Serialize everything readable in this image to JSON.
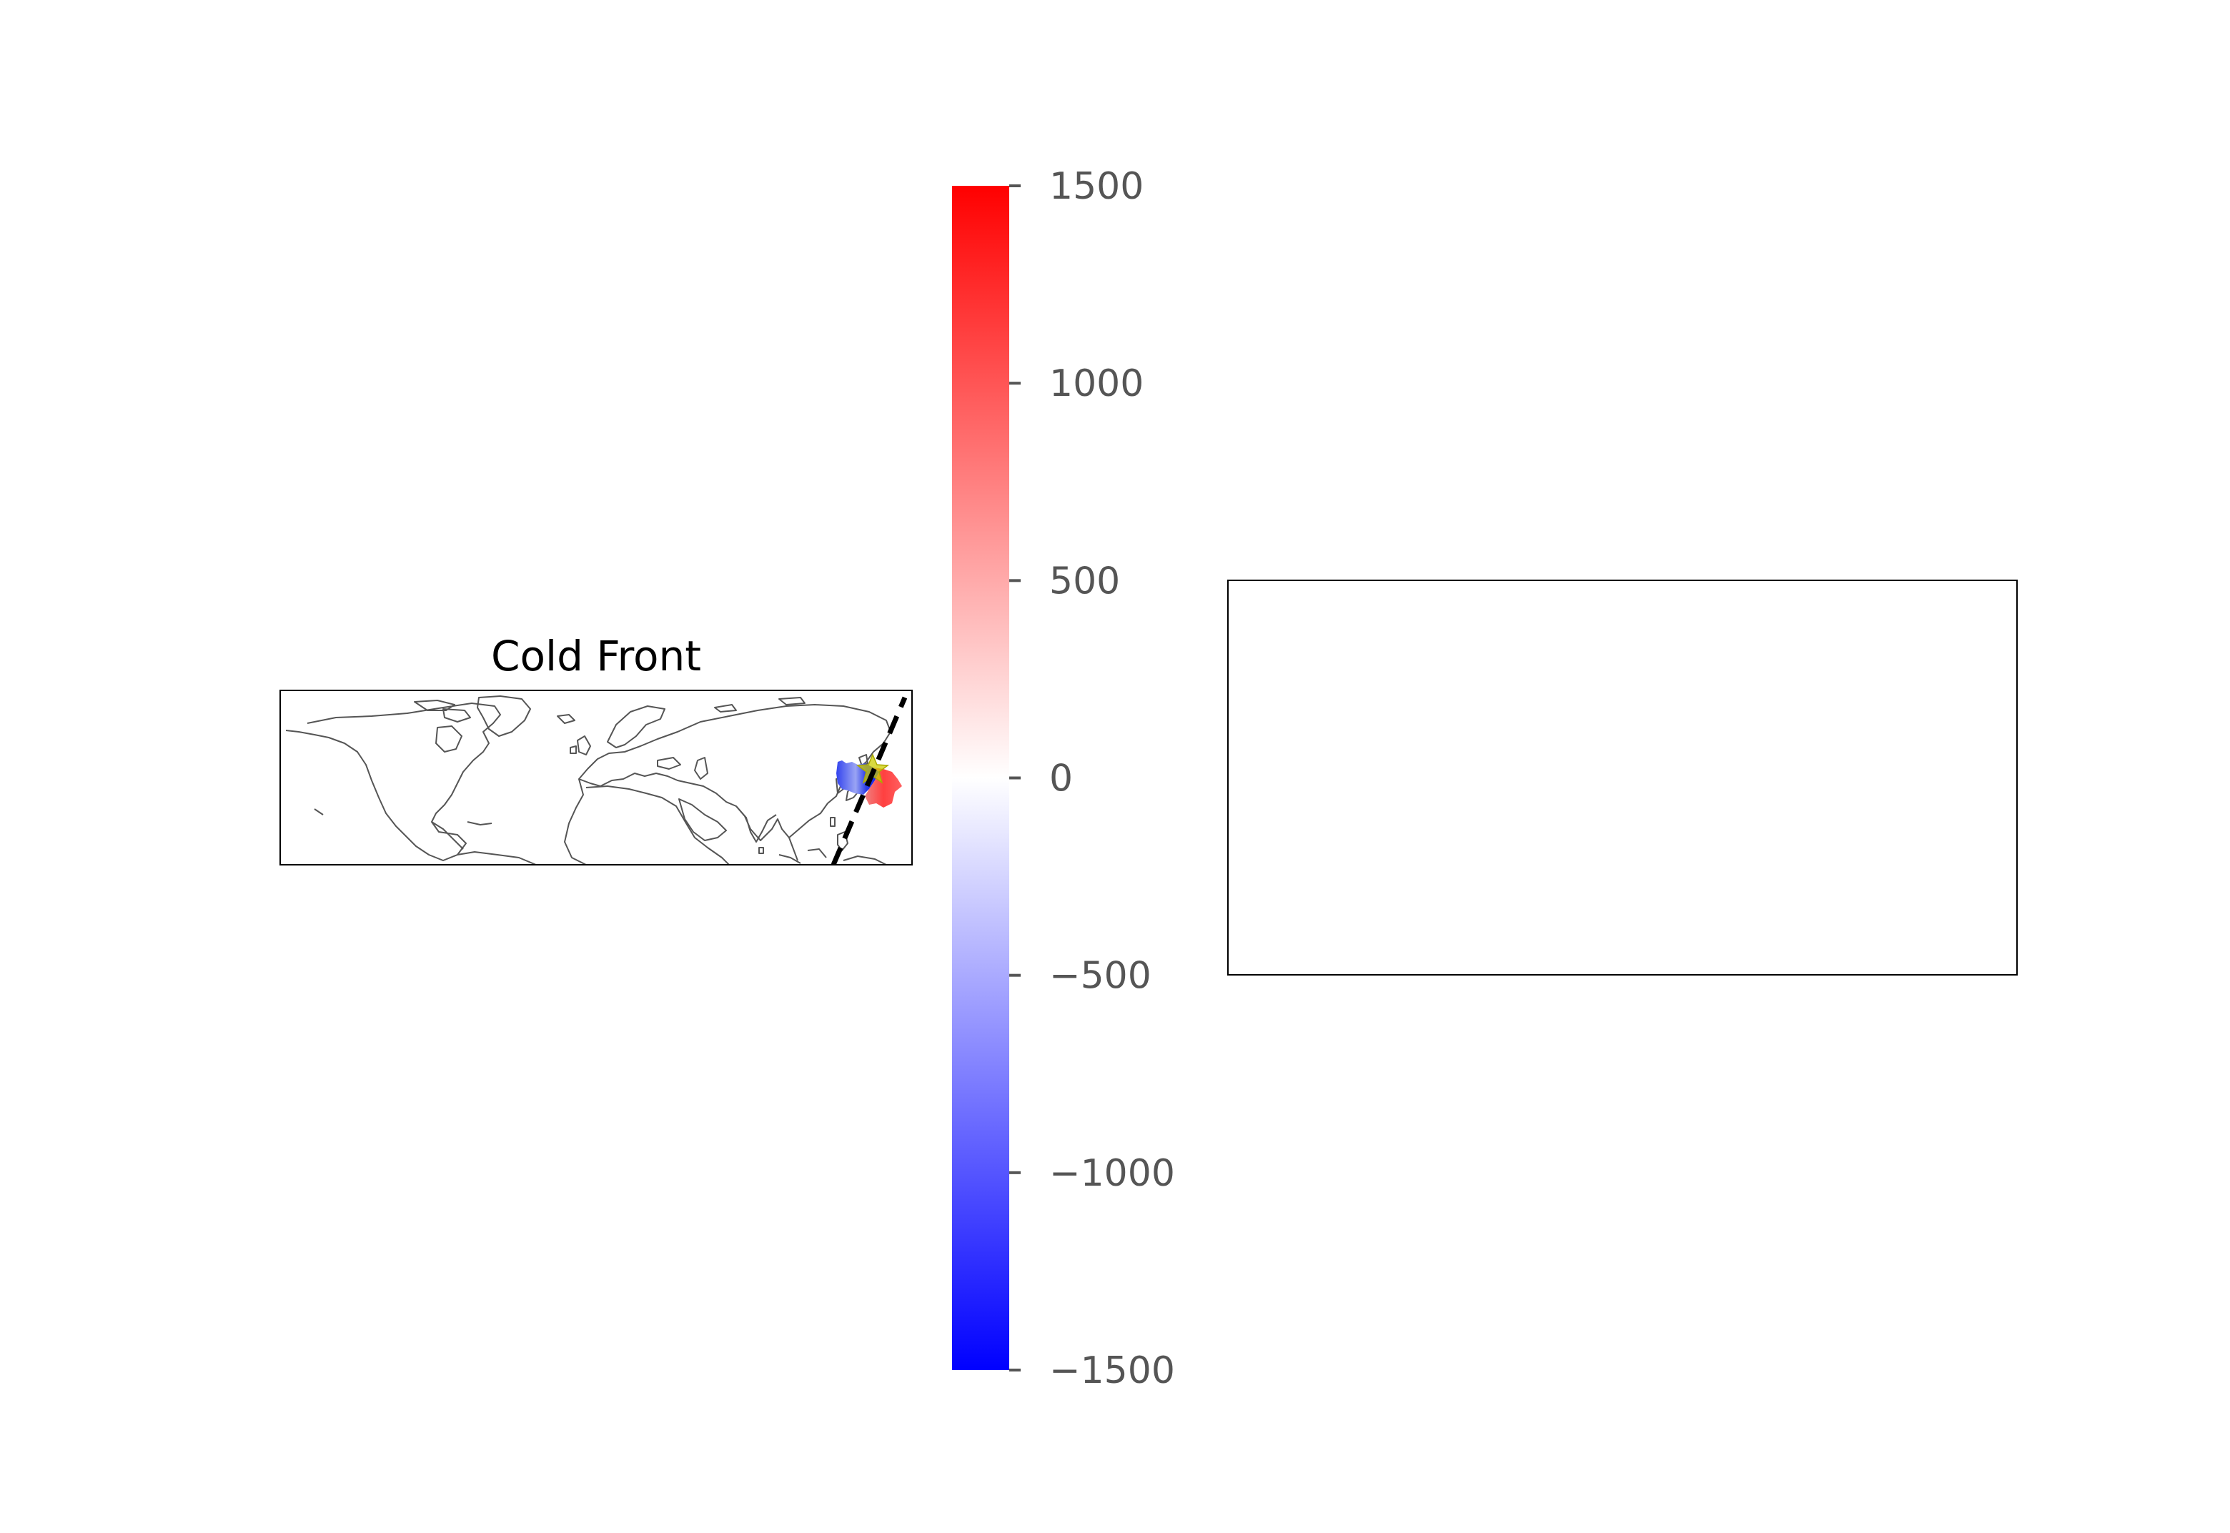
{
  "map": {
    "title": "Cold Front",
    "extent": {
      "lon": [
        -180,
        180
      ],
      "lat": [
        -20,
        80
      ]
    },
    "coastline_color": "#555555",
    "front_line": {
      "style": "dashed",
      "color": "#000000",
      "points": [
        [
          136,
          -20
        ],
        [
          178,
          77
        ]
      ]
    },
    "marker": {
      "shape": "star",
      "color": "#cccc00",
      "lon": 158,
      "lat": 48
    },
    "anomaly_field": {
      "cold_side": {
        "lon": [
          137,
          153
        ],
        "lat": [
          40,
          53
        ],
        "value": -1200
      },
      "warm_side": {
        "lon": [
          150,
          168
        ],
        "lat": [
          35,
          52
        ],
        "value": 1100
      }
    }
  },
  "colorbar": {
    "min": -1500,
    "max": 1500,
    "ticks": [
      1500,
      1000,
      500,
      0,
      -500,
      -1000,
      -1500
    ],
    "tick_labels": [
      "1500",
      "1000",
      "500",
      "0",
      "−500",
      "−1000",
      "−1500"
    ],
    "colormap": [
      "#0000ff",
      "#ffffff",
      "#ff0000"
    ]
  },
  "empty_panel": {
    "label": ""
  }
}
